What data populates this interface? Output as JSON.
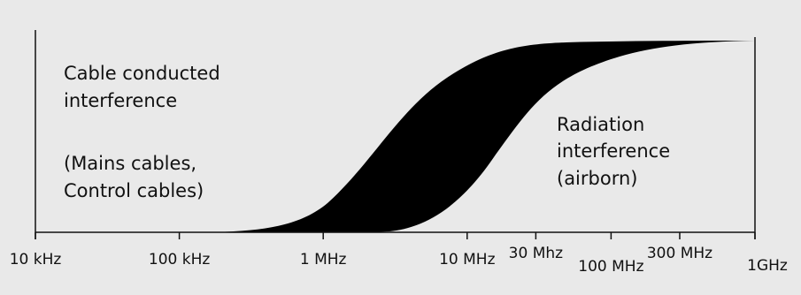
{
  "left_region": {
    "line1": "Cable conducted",
    "line2": "interference",
    "line3": "(Mains cables,",
    "line4": "Control cables)"
  },
  "right_region": {
    "line1": "Radiation",
    "line2": "interference",
    "line3": "(airborn)"
  },
  "axis": {
    "ticks": [
      {
        "label": "10 kHz",
        "freq_hz": 10000
      },
      {
        "label": "100 kHz",
        "freq_hz": 100000
      },
      {
        "label": "1 MHz",
        "freq_hz": 1000000
      },
      {
        "label": "10 MHz",
        "freq_hz": 10000000
      },
      {
        "label": "30 Mhz",
        "freq_hz": 30000000
      },
      {
        "label": "100 MHz",
        "freq_hz": 100000000
      },
      {
        "label": "300 MHz",
        "freq_hz": 300000000
      },
      {
        "label": "1GHz",
        "freq_hz": 1000000000
      }
    ],
    "scale": "log"
  },
  "colors": {
    "background": "#e9e9e9",
    "band": "#000000",
    "axis": "#111111"
  }
}
